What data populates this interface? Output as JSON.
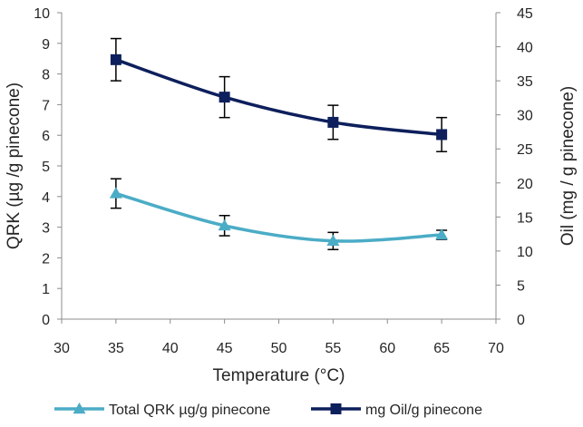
{
  "chart_data": {
    "type": "line",
    "title": "",
    "xlabel": "Temperature (°C)",
    "ylabel_left": "QRK (µg /g pinecone)",
    "ylabel_right": "Oil (mg / g pinecone)",
    "xlim": [
      30,
      70
    ],
    "x_ticks": [
      "30",
      "35",
      "40",
      "45",
      "50",
      "55",
      "60",
      "65",
      "70"
    ],
    "ylim_left": [
      0,
      10
    ],
    "y_ticks_left": [
      "0",
      "1",
      "2",
      "3",
      "4",
      "5",
      "6",
      "7",
      "8",
      "9",
      "10"
    ],
    "ylim_right": [
      0,
      45
    ],
    "y_ticks_right": [
      "0",
      "5",
      "10",
      "15",
      "20",
      "25",
      "30",
      "35",
      "40",
      "45"
    ],
    "grid": false,
    "legend_position": "bottom",
    "series": [
      {
        "name": "Total QRK µg/g pinecone",
        "axis": "left",
        "color": "#4BACC6",
        "marker": "triangle",
        "x": [
          35,
          45,
          55,
          65
        ],
        "values": [
          4.1,
          3.05,
          2.55,
          2.75
        ],
        "error": [
          0.48,
          0.33,
          0.28,
          0.15
        ]
      },
      {
        "name": "mg Oil/g pinecone",
        "axis": "right",
        "color": "#0D1F5C",
        "marker": "square",
        "x": [
          35,
          45,
          55,
          65
        ],
        "values": [
          38.1,
          32.6,
          28.9,
          27.1
        ],
        "error": [
          3.1,
          3.0,
          2.5,
          2.5
        ]
      }
    ]
  }
}
